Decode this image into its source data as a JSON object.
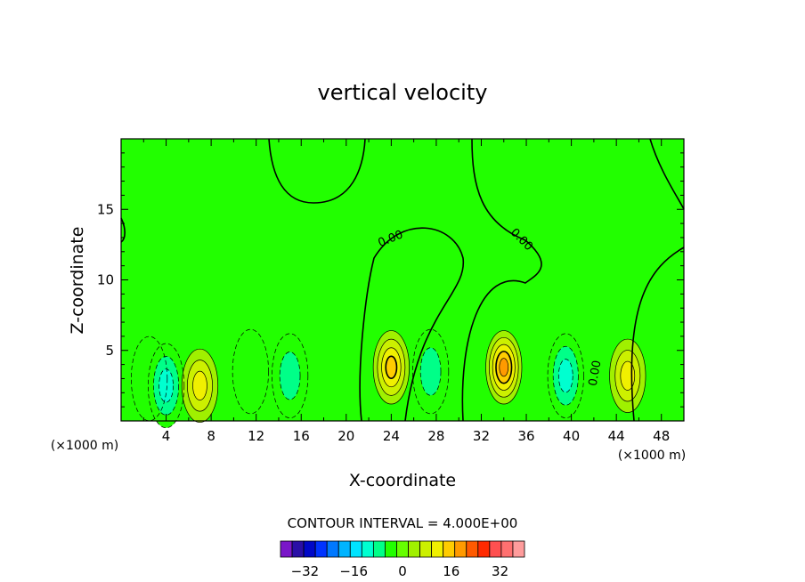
{
  "chart_data": {
    "type": "contour",
    "title": "vertical velocity",
    "xlabel": "X-coordinate",
    "ylabel": "Z-coordinate",
    "x_unit": "(×1000 m)",
    "x_unit_right": "(×1000 m)",
    "xlim": [
      0,
      50
    ],
    "ylim": [
      0,
      20
    ],
    "x_ticks": [
      4,
      8,
      12,
      16,
      20,
      24,
      28,
      32,
      36,
      40,
      44,
      48
    ],
    "y_ticks": [
      5,
      10,
      15
    ],
    "contour_interval_text": "CONTOUR INTERVAL = 4.000E+00",
    "contour_interval": 4,
    "zero_contour_labels": [
      "0.00",
      "0.00",
      "0.00"
    ],
    "colorbar": {
      "levels": [
        -36,
        -32,
        -28,
        -24,
        -20,
        -16,
        -12,
        -8,
        -4,
        0,
        4,
        8,
        12,
        16,
        20,
        24,
        28,
        32,
        36
      ],
      "labels": [
        "−32",
        "−16",
        "0",
        "16",
        "32"
      ],
      "label_values": [
        -32,
        -16,
        0,
        16,
        32
      ],
      "colors": [
        "#7a16c8",
        "#2a0fa6",
        "#0008c8",
        "#0033ff",
        "#0078ff",
        "#00b4ff",
        "#00e4ff",
        "#00ffd0",
        "#00ff88",
        "#22ff00",
        "#66ff00",
        "#a0f000",
        "#ccf000",
        "#f0f000",
        "#ffcc00",
        "#ff9a00",
        "#ff5a00",
        "#ff2a00",
        "#ff5050",
        "#ff7070",
        "#ff9c9c"
      ]
    },
    "field_centers": [
      {
        "x": 2.5,
        "z": 3.0,
        "value": -4
      },
      {
        "x": 4.0,
        "z": 2.5,
        "value": -12
      },
      {
        "x": 7.0,
        "z": 2.5,
        "value": 12
      },
      {
        "x": 11.5,
        "z": 3.5,
        "value": -4
      },
      {
        "x": 15.0,
        "z": 3.2,
        "value": -8
      },
      {
        "x": 24.0,
        "z": 3.8,
        "value": 16
      },
      {
        "x": 27.5,
        "z": 3.5,
        "value": -8
      },
      {
        "x": 34.0,
        "z": 3.8,
        "value": 20
      },
      {
        "x": 39.5,
        "z": 3.2,
        "value": -12
      },
      {
        "x": 45.0,
        "z": 3.2,
        "value": 12
      },
      {
        "x": 22.0,
        "z": 12.0,
        "value": 0
      },
      {
        "x": 36.0,
        "z": 15.0,
        "value": 0
      }
    ]
  },
  "colors": {
    "background": "#22ff00",
    "axis": "#000000"
  }
}
